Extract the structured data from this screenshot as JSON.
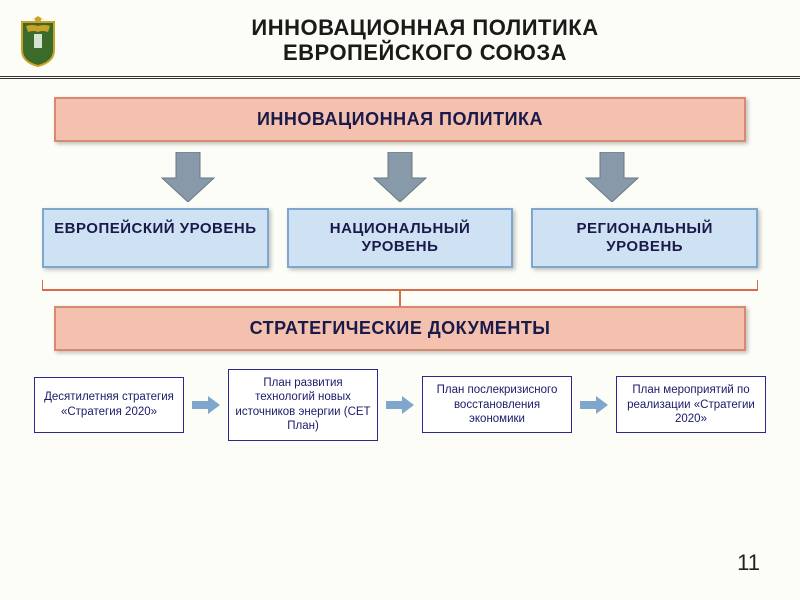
{
  "title_line1": "ИННОВАЦИОННАЯ ПОЛИТИКА",
  "title_line2": "ЕВРОПЕЙСКОГО СОЮЗА",
  "top_box": {
    "text": "ИННОВАЦИОННАЯ ПОЛИТИКА",
    "bg": "#f5c1af",
    "border": "#d88a70",
    "fg": "#1a1a4a"
  },
  "arrow_color": "#8899aa",
  "levels": [
    {
      "text": "ЕВРОПЕЙСКИЙ УРОВЕНЬ"
    },
    {
      "text": "НАЦИОНАЛЬНЫЙ УРОВЕНЬ"
    },
    {
      "text": "РЕГИОНАЛЬНЫЙ УРОВЕНЬ"
    }
  ],
  "level_style": {
    "bg": "#cfe2f3",
    "border": "#7fa6cc",
    "fg": "#1a1a4a"
  },
  "connector_color": "#d66a4a",
  "strategic_box": {
    "text": "СТРАТЕГИЧЕСКИЕ ДОКУМЕНТЫ",
    "bg": "#f5c1af",
    "border": "#d88a70",
    "fg": "#1a1a4a"
  },
  "docs": [
    {
      "text": "Десятилетняя стратегия «Стратегия 2020»"
    },
    {
      "text": "План развития технологий новых источников энергии (СЕТ План)"
    },
    {
      "text": "План послекризисного восстановления экономики"
    },
    {
      "text": "План мероприятий по реализации «Стратегии 2020»"
    }
  ],
  "doc_arrow_color": "#7fa6cc",
  "page_number": "11",
  "emblem": {
    "shield_fill": "#3a6b2a",
    "shield_stroke": "#c9a227",
    "eagle": "#c9a227"
  }
}
